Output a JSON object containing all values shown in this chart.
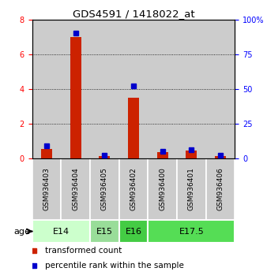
{
  "title": "GDS4591 / 1418022_at",
  "samples": [
    "GSM936403",
    "GSM936404",
    "GSM936405",
    "GSM936402",
    "GSM936400",
    "GSM936401",
    "GSM936406"
  ],
  "transformed_count": [
    0.55,
    7.0,
    0.1,
    3.5,
    0.35,
    0.45,
    0.1
  ],
  "percentile_rank": [
    9.0,
    90.0,
    2.0,
    52.0,
    5.0,
    6.0,
    2.0
  ],
  "age_groups": [
    {
      "label": "E14",
      "span": [
        0,
        2
      ],
      "color": "#ccffcc"
    },
    {
      "label": "E15",
      "span": [
        2,
        3
      ],
      "color": "#99dd99"
    },
    {
      "label": "E16",
      "span": [
        3,
        4
      ],
      "color": "#44cc44"
    },
    {
      "label": "E17.5",
      "span": [
        4,
        7
      ],
      "color": "#55dd55"
    }
  ],
  "left_ylim": [
    0,
    8
  ],
  "left_yticks": [
    0,
    2,
    4,
    6,
    8
  ],
  "right_ylim": [
    0,
    100
  ],
  "right_yticks": [
    0,
    25,
    50,
    75,
    100
  ],
  "right_yticklabels": [
    "0",
    "25",
    "50",
    "75",
    "100%"
  ],
  "bar_color": "#cc2200",
  "dot_color": "#0000cc",
  "bg_color": "#ffffff",
  "sample_bg": "#cccccc",
  "legend_items": [
    {
      "color": "#cc2200",
      "label": "transformed count"
    },
    {
      "color": "#0000cc",
      "label": "percentile rank within the sample"
    }
  ]
}
